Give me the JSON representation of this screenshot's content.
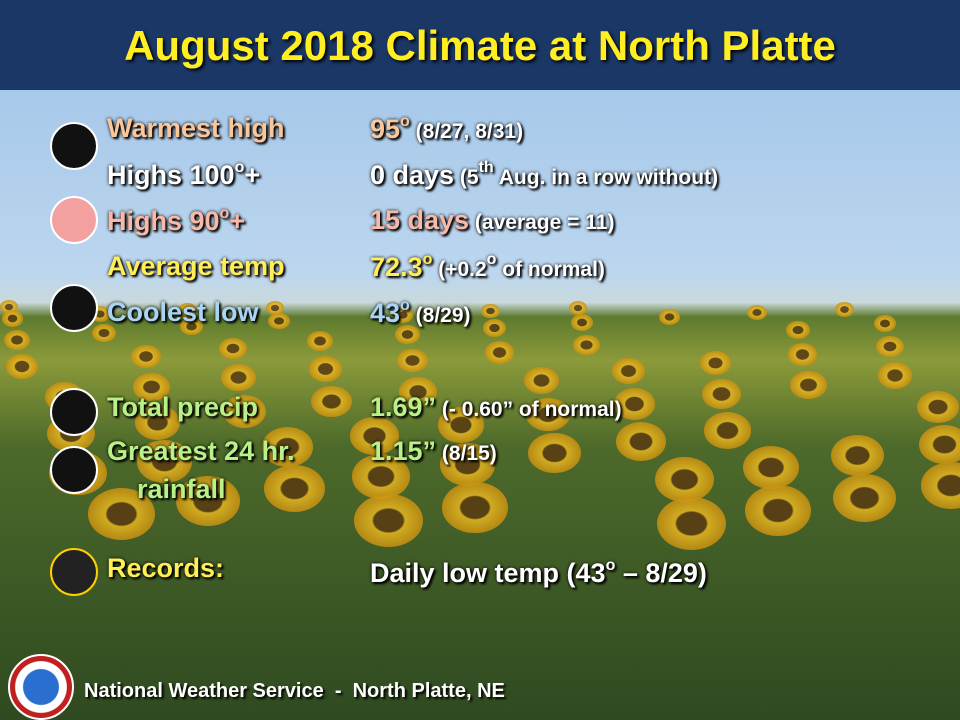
{
  "header": {
    "title": "August 2018 Climate at North Platte"
  },
  "rows": [
    {
      "color": "#f9c79a",
      "label": [
        {
          "t": "Warmest high"
        }
      ],
      "value": [
        {
          "t": "95"
        },
        {
          "t": "o",
          "sup": true
        }
      ],
      "note": [
        {
          "t": "(8/27, 8/31)"
        }
      ]
    },
    {
      "color": "#ffffff",
      "label": [
        {
          "t": "Highs 100"
        },
        {
          "t": "o",
          "sup": true
        },
        {
          "t": "+"
        }
      ],
      "value": [
        {
          "t": "0 days"
        }
      ],
      "note": [
        {
          "t": "(5"
        },
        {
          "t": "th",
          "sup": true
        },
        {
          "t": " Aug. in a row without)"
        }
      ]
    },
    {
      "color": "#f8b9a8",
      "label": [
        {
          "t": "Highs 90"
        },
        {
          "t": "o",
          "sup": true
        },
        {
          "t": "+"
        }
      ],
      "value": [
        {
          "t": "15 days"
        }
      ],
      "note": [
        {
          "t": "(average = 11)"
        }
      ]
    },
    {
      "color": "#ffee55",
      "label": [
        {
          "t": "Average temp"
        }
      ],
      "value": [
        {
          "t": "72.3"
        },
        {
          "t": "o",
          "sup": true
        }
      ],
      "note": [
        {
          "t": "(+0.2"
        },
        {
          "t": "o",
          "sup": true
        },
        {
          "t": " of normal)"
        }
      ]
    },
    {
      "color": "#a9d4f5",
      "label": [
        {
          "t": "Coolest low"
        }
      ],
      "value": [
        {
          "t": "43"
        },
        {
          "t": "o",
          "sup": true
        }
      ],
      "note": [
        {
          "t": "(8/29)"
        }
      ]
    },
    {
      "color": "#b8f08a",
      "label": [
        {
          "t": "Total precip"
        }
      ],
      "value": [
        {
          "t": "1.69”"
        }
      ],
      "note": [
        {
          "t": "(- 0.60” of normal)"
        }
      ]
    },
    {
      "color": "#b8f08a",
      "label": [
        {
          "t": "Greatest 24 hr."
        }
      ],
      "label2": [
        {
          "t": "rainfall"
        }
      ],
      "value": [
        {
          "t": "1.15”"
        }
      ],
      "note": [
        {
          "t": "(8/15)"
        }
      ]
    },
    {
      "color": "#ffee55",
      "label": [
        {
          "t": "Records:"
        }
      ],
      "value": [
        {
          "t": "Daily low temp (43"
        },
        {
          "t": "o",
          "sup": true
        },
        {
          "t": " – 8/29)"
        }
      ],
      "note": []
    }
  ],
  "footer": "National Weather Service  -  North Platte, NE"
}
